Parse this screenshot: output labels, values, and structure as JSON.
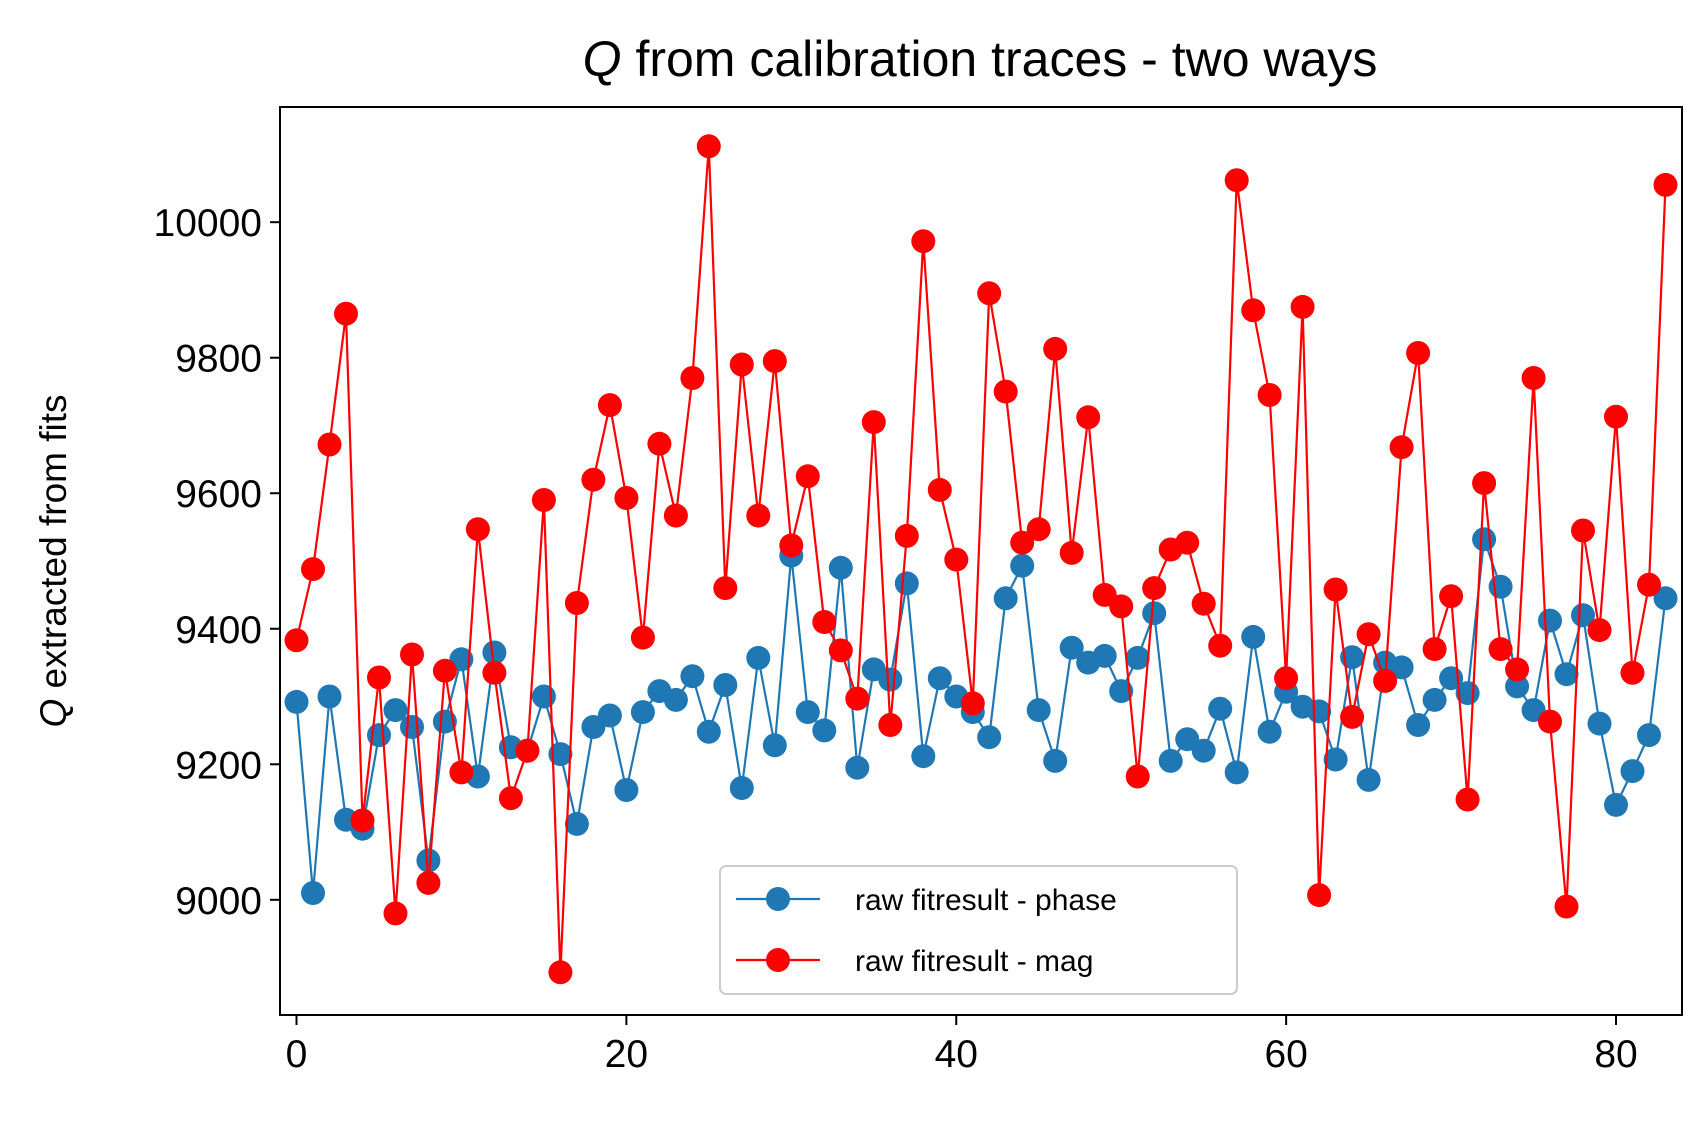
{
  "chart_data": {
    "type": "line",
    "title_symbol": "Q",
    "title_rest": " from calibration traces - two ways",
    "ylabel_symbol": "Q",
    "ylabel_rest": " extracted from fits",
    "xlabel": "",
    "xlim": [
      -1,
      84
    ],
    "ylim": [
      8830,
      10170
    ],
    "xticks": [
      0,
      20,
      40,
      60,
      80
    ],
    "yticks": [
      9000,
      9200,
      9400,
      9600,
      9800,
      10000
    ],
    "legend_position": "lower center",
    "grid": false,
    "x": [
      0,
      1,
      2,
      3,
      4,
      5,
      6,
      7,
      8,
      9,
      10,
      11,
      12,
      13,
      14,
      15,
      16,
      17,
      18,
      19,
      20,
      21,
      22,
      23,
      24,
      25,
      26,
      27,
      28,
      29,
      30,
      31,
      32,
      33,
      34,
      35,
      36,
      37,
      38,
      39,
      40,
      41,
      42,
      43,
      44,
      45,
      46,
      47,
      48,
      49,
      50,
      51,
      52,
      53,
      54,
      55,
      56,
      57,
      58,
      59,
      60,
      61,
      62,
      63,
      64,
      65,
      66,
      67,
      68,
      69,
      70,
      71,
      72,
      73,
      74,
      75,
      76,
      77,
      78,
      79,
      80,
      81,
      82,
      83
    ],
    "series": [
      {
        "name": "raw fitresult - phase",
        "color": "#1f77b4",
        "values": [
          9292,
          9010,
          9300,
          9118,
          9105,
          9243,
          9280,
          9255,
          9058,
          9263,
          9355,
          9182,
          9365,
          9225,
          9220,
          9300,
          9215,
          9112,
          9255,
          9272,
          9162,
          9277,
          9308,
          9295,
          9330,
          9248,
          9317,
          9165,
          9357,
          9228,
          9508,
          9277,
          9250,
          9490,
          9195,
          9340,
          9325,
          9467,
          9212,
          9327,
          9300,
          9277,
          9240,
          9445,
          9493,
          9280,
          9205,
          9372,
          9350,
          9360,
          9308,
          9357,
          9423,
          9205,
          9237,
          9220,
          9282,
          9188,
          9388,
          9248,
          9307,
          9285,
          9278,
          9207,
          9358,
          9177,
          9350,
          9343,
          9258,
          9295,
          9327,
          9305,
          9532,
          9462,
          9315,
          9280,
          9412,
          9333,
          9420,
          9260,
          9140,
          9190,
          9243,
          9445
        ]
      },
      {
        "name": "raw fitresult - mag",
        "color": "#ff0000",
        "values": [
          9383,
          9488,
          9672,
          9865,
          9117,
          9328,
          8980,
          9362,
          9025,
          9338,
          9188,
          9547,
          9335,
          9150,
          9220,
          9590,
          8893,
          9438,
          9620,
          9730,
          9593,
          9387,
          9673,
          9567,
          9770,
          10112,
          9460,
          9790,
          9567,
          9795,
          9523,
          9625,
          9410,
          9368,
          9297,
          9705,
          9258,
          9537,
          9972,
          9605,
          9502,
          9290,
          9895,
          9750,
          9527,
          9547,
          9813,
          9512,
          9712,
          9450,
          9433,
          9182,
          9460,
          9517,
          9527,
          9437,
          9375,
          10062,
          9870,
          9745,
          9327,
          9875,
          9007,
          9458,
          9270,
          9392,
          9323,
          9668,
          9807,
          9370,
          9448,
          9148,
          9615,
          9370,
          9340,
          9770,
          9263,
          8990,
          9545,
          9398,
          9713,
          9335,
          9465,
          10055
        ]
      }
    ]
  }
}
